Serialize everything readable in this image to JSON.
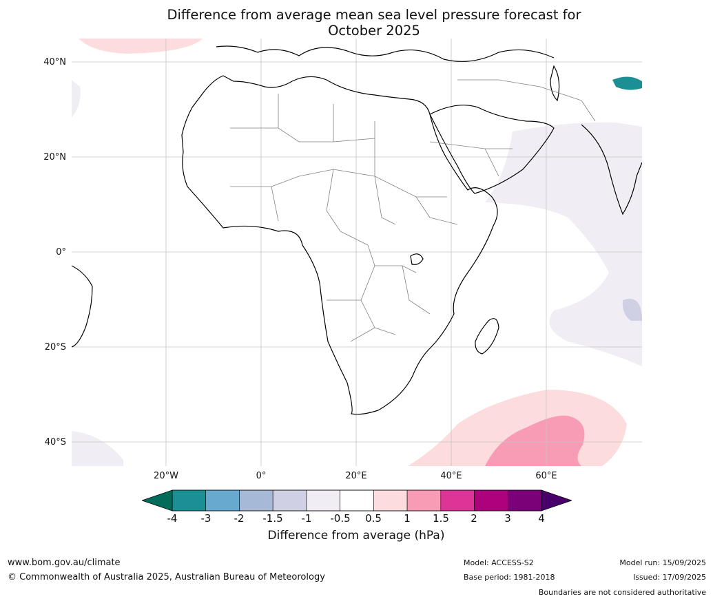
{
  "title_line1": "Difference from average mean sea level pressure forecast for",
  "title_line2": "October 2025",
  "lat_labels": [
    "40°N",
    "20°N",
    "0°",
    "20°S",
    "40°S"
  ],
  "lon_labels": [
    "20°W",
    "0°",
    "20°E",
    "40°E",
    "60°E"
  ],
  "colorbar": {
    "label": "Difference from average (hPa)",
    "ticks": [
      "-4",
      "-3",
      "-2",
      "-1.5",
      "-1",
      "-0.5",
      "0.5",
      "1",
      "1.5",
      "2",
      "3",
      "4"
    ],
    "colors": [
      "#1c8f94",
      "#67a9cf",
      "#a6b9d6",
      "#cfd0e4",
      "#f1edf4",
      "#ffffff",
      "#fcdcdc",
      "#f89cb5",
      "#dd3497",
      "#ae017e",
      "#7a0177"
    ],
    "under_color": "#016c59",
    "over_color": "#49006a"
  },
  "footer": {
    "website": "www.bom.gov.au/climate",
    "copyright": "© Commonwealth of Australia 2025, Australian Bureau of Meteorology",
    "model": "Model: ACCESS-S2",
    "base_period": "Base period: 1981-2018",
    "model_run": "Model run: 15/09/2025",
    "issued": "Issued: 17/09/2025",
    "disclaimer": "Boundaries are not considered authoritative"
  }
}
